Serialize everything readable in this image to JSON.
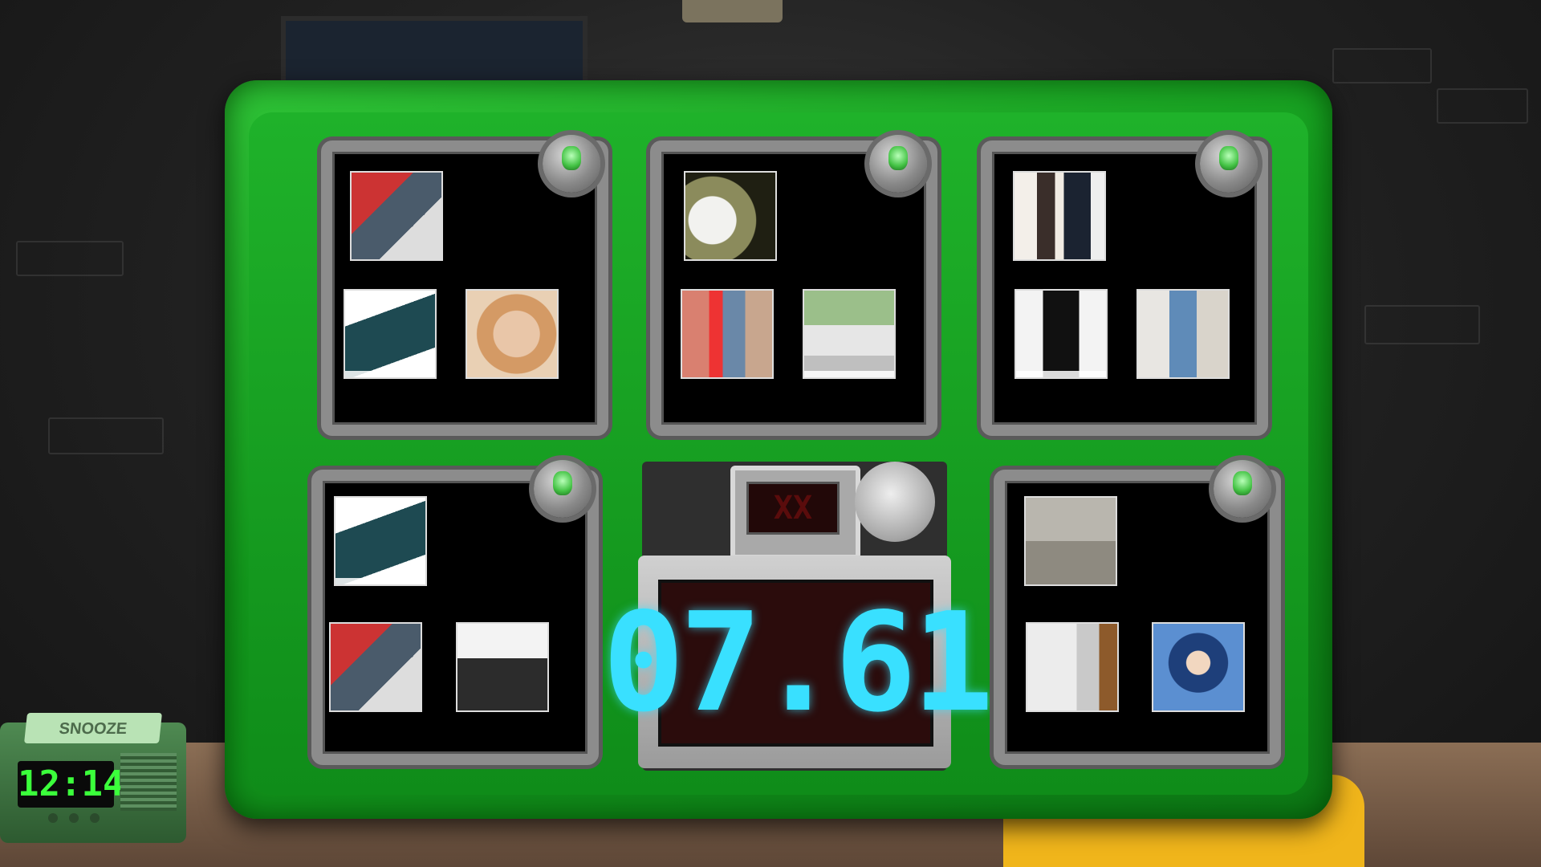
{
  "timer": {
    "display": "07.61"
  },
  "strikes": {
    "display": "XX"
  },
  "alarm_clock": {
    "snooze_label": "SNOOZE",
    "time": "12:14"
  },
  "colors": {
    "casing": "#1fb22a",
    "timer_digits": "#39e0ff",
    "clock_digits": "#3bff3b"
  },
  "modules": [
    {
      "name": "top-left",
      "photos": [
        "lumberjack-couple-photo",
        "masked-gunman-photo",
        "smiling-old-man-photo"
      ]
    },
    {
      "name": "top-center",
      "photos": [
        "toilet-photo",
        "distracted-boyfriend-photo",
        "car-crash-photo"
      ]
    },
    {
      "name": "top-right",
      "photos": [
        "hostage-photo",
        "armed-nun-photo",
        "wheelchair-man-photo"
      ]
    },
    {
      "name": "bottom-left",
      "photos": [
        "masked-gunman-photo",
        "lumberjack-couple-photo",
        "pencil-man-photo"
      ]
    },
    {
      "name": "bottom-right",
      "photos": [
        "crime-scene-photo",
        "bathroom-photo",
        "reading-man-photo"
      ]
    }
  ]
}
